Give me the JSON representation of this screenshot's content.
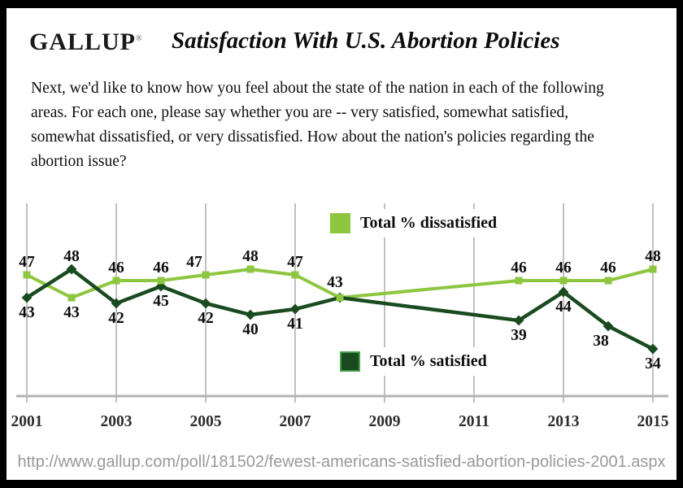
{
  "header": {
    "logo": "GALLUP",
    "trademark": "®",
    "title": "Satisfaction With U.S. Abortion Policies"
  },
  "question": "Next, we'd like to know how you feel about the state of the nation in each of the following areas. For each one, please say whether you are -- very satisfied, somewhat satisfied, somewhat dissatisfied, or very dissatisfied. How about the nation's policies regarding the abortion issue?",
  "chart_data": {
    "type": "line",
    "x": [
      2001,
      2002,
      2003,
      2004,
      2005,
      2006,
      2007,
      2008,
      2012,
      2013,
      2014,
      2015
    ],
    "x_ticks": [
      "2001",
      "2003",
      "2005",
      "2007",
      "2009",
      "2011",
      "2013",
      "2015"
    ],
    "gap_years_without_data": [
      2009,
      2010,
      2011
    ],
    "series": [
      {
        "name": "Total % dissatisfied",
        "color": "#8dc63f",
        "marker": "square",
        "values": [
          47,
          43,
          46,
          46,
          47,
          48,
          47,
          43,
          46,
          46,
          46,
          48
        ]
      },
      {
        "name": "Total % satisfied",
        "color": "#1a4a1f",
        "marker": "diamond",
        "values": [
          43,
          48,
          42,
          45,
          42,
          40,
          41,
          43,
          39,
          44,
          38,
          34
        ]
      }
    ],
    "ylim": [
      26,
      59
    ],
    "grid": "vertical gridlines at odd years only",
    "legend_position": "dissatisfied: top center of plot; satisfied: bottom center of plot",
    "colors": {
      "gridline": "#bababa",
      "axis": "#b3b3b3",
      "data_label": "#0d0d0d",
      "tick_label": "#2d2d2d"
    }
  },
  "footer": {
    "url": "http://www.gallup.com/poll/181502/fewest-americans-satisfied-abortion-policies-2001.aspx"
  }
}
